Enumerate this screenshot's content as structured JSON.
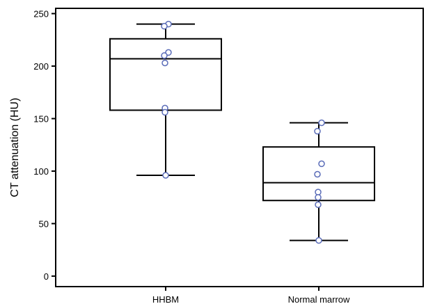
{
  "chart_data": {
    "type": "box",
    "title": "",
    "xlabel": "",
    "ylabel": "CT attenuation (HU)",
    "ylim": [
      -10,
      255
    ],
    "yticks": [
      0,
      50,
      100,
      150,
      200,
      250
    ],
    "grid": false,
    "categories": [
      "HHBM",
      "Normal marrow"
    ],
    "boxes": [
      {
        "category": "HHBM",
        "whisker_low": 96,
        "q1": 158,
        "median": 207,
        "q3": 226,
        "whisker_high": 240,
        "points": [
          240,
          238,
          213,
          210,
          203,
          160,
          156,
          96
        ]
      },
      {
        "category": "Normal marrow",
        "whisker_low": 34,
        "q1": 72,
        "median": 89,
        "q3": 123,
        "whisker_high": 146,
        "points": [
          146,
          138,
          107,
          97,
          80,
          75,
          68,
          34
        ]
      }
    ],
    "colors": {
      "box_stroke": "#000000",
      "point_stroke": "#5a6cb8",
      "point_fill": "#ffffff"
    }
  }
}
